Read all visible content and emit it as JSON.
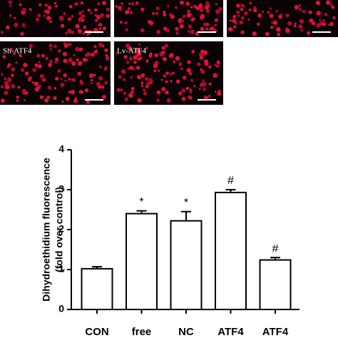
{
  "micrographs": {
    "labels": [
      "Sh-ATF4",
      "Lv-ATF4"
    ]
  },
  "chart_data": {
    "type": "bar",
    "ylabel": [
      "Dihydroethidium fluorescence",
      "(fold over control)"
    ],
    "categories": [
      "CON",
      "free",
      "NC",
      "ATF4",
      "ATF4"
    ],
    "values": [
      1.02,
      2.4,
      2.22,
      2.93,
      1.24
    ],
    "errors": [
      0.05,
      0.07,
      0.23,
      0.07,
      0.06
    ],
    "significance": [
      null,
      "*",
      "*",
      "#",
      "#"
    ],
    "color": "#ffffff",
    "ylim": [
      0,
      4
    ],
    "yticks": [
      0,
      1,
      2,
      3,
      4
    ]
  }
}
